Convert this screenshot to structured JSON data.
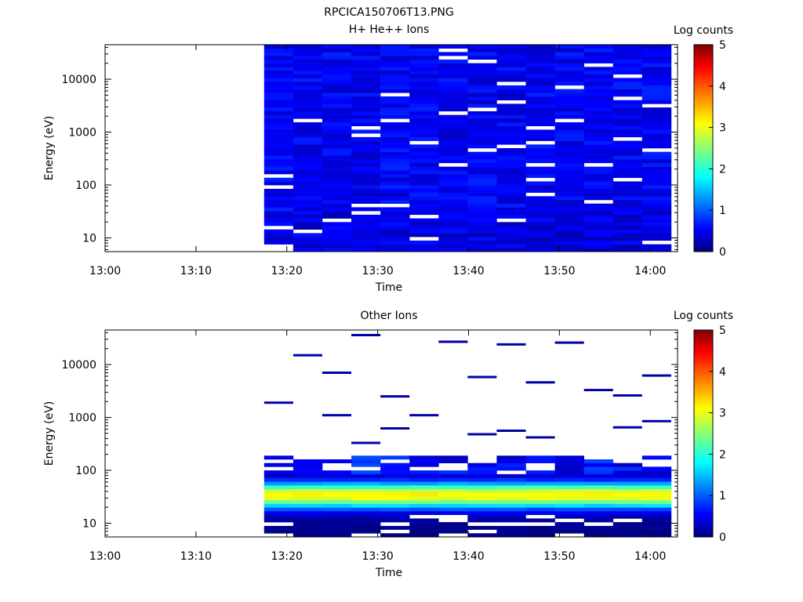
{
  "figure": {
    "title": "RPCICA150706T13.PNG"
  },
  "colorbar": {
    "label": "Log counts",
    "ticks": [
      "0",
      "1",
      "2",
      "3",
      "4",
      "5"
    ],
    "range": [
      0,
      5
    ],
    "colormap": "jet"
  },
  "chart_data": [
    {
      "type": "heatmap",
      "title": "H+ He++ Ions",
      "xlabel": "Time",
      "ylabel": "Energy (eV)",
      "xticks": [
        "13:00",
        "13:10",
        "13:20",
        "13:30",
        "13:40",
        "13:50",
        "14:00"
      ],
      "yticks": [
        "10",
        "100",
        "1000",
        "10000"
      ],
      "xlim": [
        "13:00",
        "14:03"
      ],
      "ylim": [
        5.5,
        45000
      ],
      "yscale": "log",
      "data_start": "13:17.5",
      "columns": 14,
      "column_width_min": 3.2,
      "mean_level_log_counts": 0.45,
      "notes_visible": "Mostly dark/medium blue (0.2–0.8 log counts) with scattered white empty bins"
    },
    {
      "type": "heatmap",
      "title": "Other Ions",
      "xlabel": "Time",
      "ylabel": "Energy (eV)",
      "xticks": [
        "13:00",
        "13:10",
        "13:20",
        "13:30",
        "13:40",
        "13:50",
        "14:00"
      ],
      "yticks": [
        "10",
        "100",
        "1000",
        "10000"
      ],
      "xlim": [
        "13:00",
        "14:03"
      ],
      "ylim": [
        5.5,
        45000
      ],
      "yscale": "log",
      "data_start": "13:17.5",
      "columns": 14,
      "column_width_min": 3.2,
      "peak_band_eV": [
        25,
        45
      ],
      "peak_log_counts": 3.2,
      "sparse_high_energy_traces_eV": [
        7000,
        5800,
        2600,
        36000,
        24000,
        6200,
        2500,
        4600,
        1900,
        1100,
        26000,
        15000,
        27000,
        3300,
        1100,
        480,
        650,
        330,
        560,
        850,
        620,
        420
      ]
    }
  ]
}
